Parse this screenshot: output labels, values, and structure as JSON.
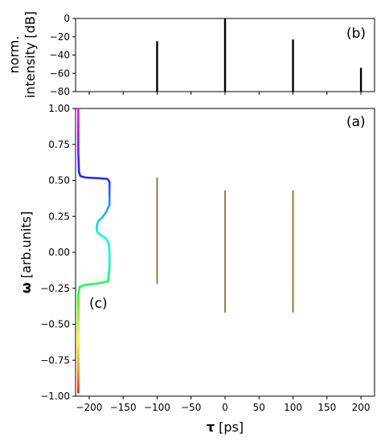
{
  "chart_data": [
    {
      "panel": "(b)",
      "type": "bar",
      "xlim": [
        -220,
        220
      ],
      "ylim": [
        -80,
        0
      ],
      "yticks": [
        0,
        -20,
        -40,
        -60,
        -80
      ],
      "ytick_labels": [
        "0",
        "−20",
        "−40",
        "−60",
        "−80"
      ],
      "ylabel_lines": [
        "norm.",
        "intensity [dB]"
      ],
      "series": [
        {
          "values": [
            {
              "x": -100,
              "y": -25
            },
            {
              "x": 0,
              "y": 0
            },
            {
              "x": 100,
              "y": -23
            },
            {
              "x": 200,
              "y": -54
            }
          ]
        }
      ],
      "bar_color": "#000000"
    },
    {
      "panel": "(a)",
      "type": "line",
      "xlim": [
        -220,
        220
      ],
      "ylim": [
        -1,
        1
      ],
      "xticks": [
        -200,
        -150,
        -100,
        -50,
        0,
        50,
        100,
        150,
        200
      ],
      "xtick_labels": [
        "−200",
        "−150",
        "−100",
        "−50",
        "0",
        "50",
        "100",
        "150",
        "200"
      ],
      "yticks": [
        1.0,
        0.75,
        0.5,
        0.25,
        0.0,
        -0.25,
        -0.5,
        -0.75,
        -1.0
      ],
      "ytick_labels": [
        "1.00",
        "0.75",
        "0.50",
        "0.25",
        "0.00",
        "−0.25",
        "−0.50",
        "−0.75",
        "−1.00"
      ],
      "xlabel_symbol": "τ",
      "xlabel_unit": " [ps]",
      "ylabel_symbol": "ω",
      "ylabel_unit": " [arb.units]",
      "segments": [
        {
          "x": -100,
          "y_from": -0.22,
          "y_to": 0.52
        },
        {
          "x": 0,
          "y_from": -0.42,
          "y_to": 0.43
        },
        {
          "x": 100,
          "y_from": -0.42,
          "y_to": 0.43
        }
      ],
      "segment_color": "#8b5a14"
    },
    {
      "panel": "(c)",
      "type": "line",
      "note_axes": "spectral envelope plotted on panel (a) axes; x in ps, y in arb.units",
      "points": [
        {
          "y": 1.0,
          "x": -216
        },
        {
          "y": 0.9,
          "x": -216
        },
        {
          "y": 0.7,
          "x": -216
        },
        {
          "y": 0.56,
          "x": -215
        },
        {
          "y": 0.53,
          "x": -213
        },
        {
          "y": 0.52,
          "x": -205
        },
        {
          "y": 0.515,
          "x": -185
        },
        {
          "y": 0.51,
          "x": -173
        },
        {
          "y": 0.49,
          "x": -170
        },
        {
          "y": 0.4,
          "x": -170
        },
        {
          "y": 0.33,
          "x": -170
        },
        {
          "y": 0.28,
          "x": -175
        },
        {
          "y": 0.24,
          "x": -181
        },
        {
          "y": 0.22,
          "x": -186
        },
        {
          "y": 0.2,
          "x": -188
        },
        {
          "y": 0.17,
          "x": -189
        },
        {
          "y": 0.14,
          "x": -188
        },
        {
          "y": 0.12,
          "x": -183
        },
        {
          "y": 0.1,
          "x": -176
        },
        {
          "y": 0.06,
          "x": -171
        },
        {
          "y": 0.0,
          "x": -170
        },
        {
          "y": -0.1,
          "x": -170
        },
        {
          "y": -0.2,
          "x": -172
        },
        {
          "y": -0.215,
          "x": -185
        },
        {
          "y": -0.225,
          "x": -205
        },
        {
          "y": -0.24,
          "x": -214
        },
        {
          "y": -0.3,
          "x": -216
        },
        {
          "y": -0.5,
          "x": -216
        },
        {
          "y": -0.8,
          "x": -216
        },
        {
          "y": -0.98,
          "x": -216
        }
      ],
      "color_stops": [
        {
          "y": 1.0,
          "color": "#ff00ff"
        },
        {
          "y": 0.55,
          "color": "#2a1aff"
        },
        {
          "y": 0.3,
          "color": "#1aa8ff"
        },
        {
          "y": 0.1,
          "color": "#00ffff"
        },
        {
          "y": -0.15,
          "color": "#00ff80"
        },
        {
          "y": -0.35,
          "color": "#40ff00"
        },
        {
          "y": -0.6,
          "color": "#ffff00"
        },
        {
          "y": -0.8,
          "color": "#ff9900"
        },
        {
          "y": -1.0,
          "color": "#ff0000"
        }
      ]
    }
  ]
}
